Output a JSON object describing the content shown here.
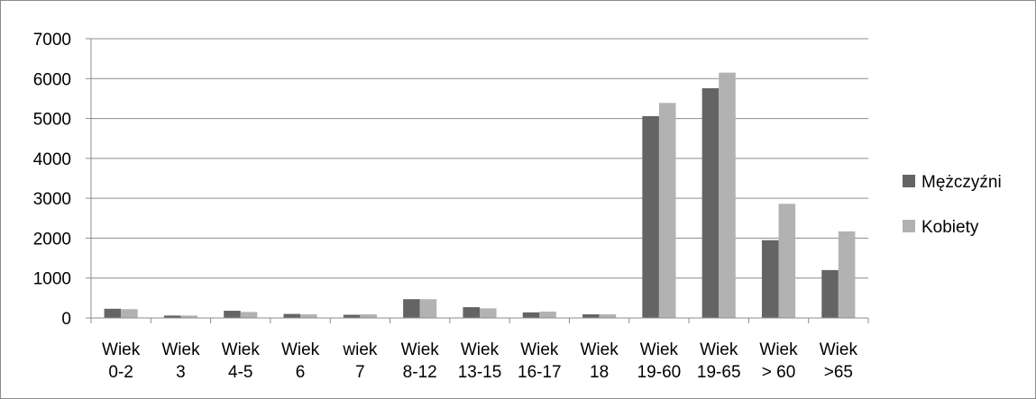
{
  "chart_data": {
    "type": "bar",
    "categories": [
      [
        "Wiek",
        "0-2"
      ],
      [
        "Wiek",
        "3"
      ],
      [
        "Wiek",
        "4-5"
      ],
      [
        "Wiek",
        "6"
      ],
      [
        "wiek",
        "7"
      ],
      [
        "Wiek",
        "8-12"
      ],
      [
        "Wiek",
        "13-15"
      ],
      [
        "Wiek",
        "16-17"
      ],
      [
        "Wiek",
        "18"
      ],
      [
        "Wiek",
        "19-60"
      ],
      [
        "Wiek",
        "19-65"
      ],
      [
        "Wiek",
        "> 60"
      ],
      [
        "Wiek",
        ">65"
      ]
    ],
    "series": [
      {
        "name": "Mężczyźni",
        "color": "#646464",
        "values": [
          230,
          60,
          180,
          100,
          80,
          470,
          270,
          140,
          90,
          5060,
          5760,
          1950,
          1200
        ]
      },
      {
        "name": "Kobiety",
        "color": "#b2b2b2",
        "values": [
          220,
          60,
          150,
          90,
          90,
          470,
          240,
          160,
          90,
          5390,
          6150,
          2860,
          2170
        ]
      }
    ],
    "ylim": [
      0,
      7000
    ],
    "yticks": [
      0,
      1000,
      2000,
      3000,
      4000,
      5000,
      6000,
      7000
    ],
    "grid": true,
    "legend_position": "right"
  }
}
